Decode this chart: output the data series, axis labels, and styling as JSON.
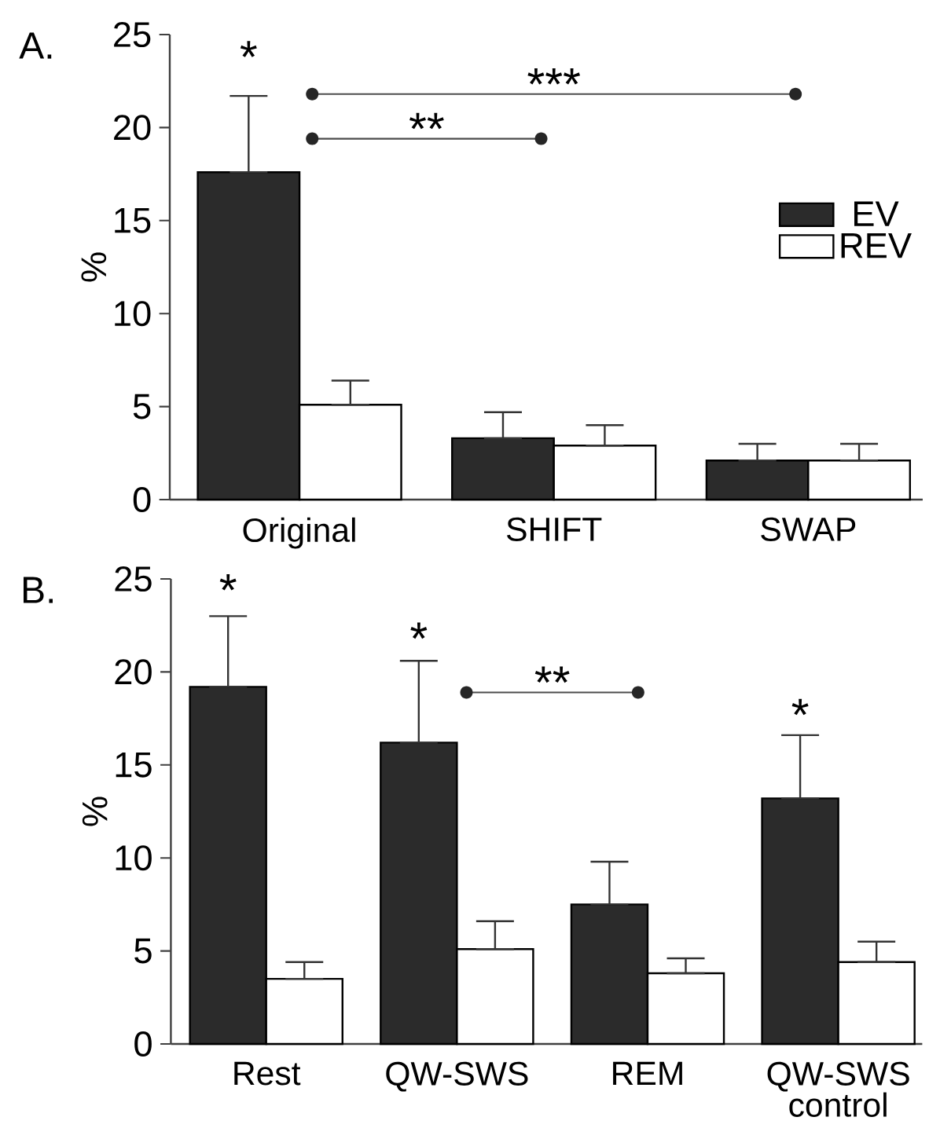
{
  "chart_data": [
    {
      "type": "bar",
      "title": "A.",
      "ylabel": "%",
      "categories": [
        "Original",
        "SHIFT",
        "SWAP"
      ],
      "series": [
        {
          "name": "EV",
          "color": "#2b2b2b",
          "values": [
            17.6,
            3.3,
            2.1
          ],
          "errors": [
            [
              17.6,
              21.7
            ],
            [
              3.3,
              4.7
            ],
            [
              2.1,
              3.0
            ]
          ]
        },
        {
          "name": "REV",
          "color": "#ffffff",
          "values": [
            5.1,
            2.9,
            2.1
          ],
          "errors": [
            [
              5.1,
              6.4
            ],
            [
              2.9,
              4.0
            ],
            [
              2.1,
              3.0
            ]
          ]
        }
      ],
      "ylim": [
        0,
        25
      ],
      "yticks": [
        0,
        5,
        10,
        15,
        20,
        25
      ],
      "legend": "top right",
      "annotations": [
        "*",
        "**",
        "***"
      ]
    },
    {
      "type": "bar",
      "title": "B.",
      "ylabel": "%",
      "categories": [
        "Rest",
        "QW-SWS",
        "REM",
        "QW-SWS control"
      ],
      "series": [
        {
          "color": "#2b2b2b",
          "values": [
            19.2,
            16.2,
            7.5,
            13.2
          ],
          "errors": [
            [
              19.2,
              23.0
            ],
            [
              16.2,
              20.6
            ],
            [
              7.5,
              9.8
            ],
            [
              13.2,
              16.6
            ]
          ]
        },
        {
          "color": "#ffffff",
          "values": [
            3.5,
            5.1,
            3.8,
            4.4
          ],
          "errors": [
            [
              3.5,
              4.4
            ],
            [
              5.1,
              6.6
            ],
            [
              3.8,
              4.6
            ],
            [
              4.4,
              5.5
            ]
          ]
        }
      ],
      "ylim": [
        0,
        25
      ],
      "yticks": [
        0,
        5,
        10,
        15,
        20,
        25
      ],
      "annotations": [
        "*",
        "*",
        "*",
        "**"
      ]
    }
  ]
}
